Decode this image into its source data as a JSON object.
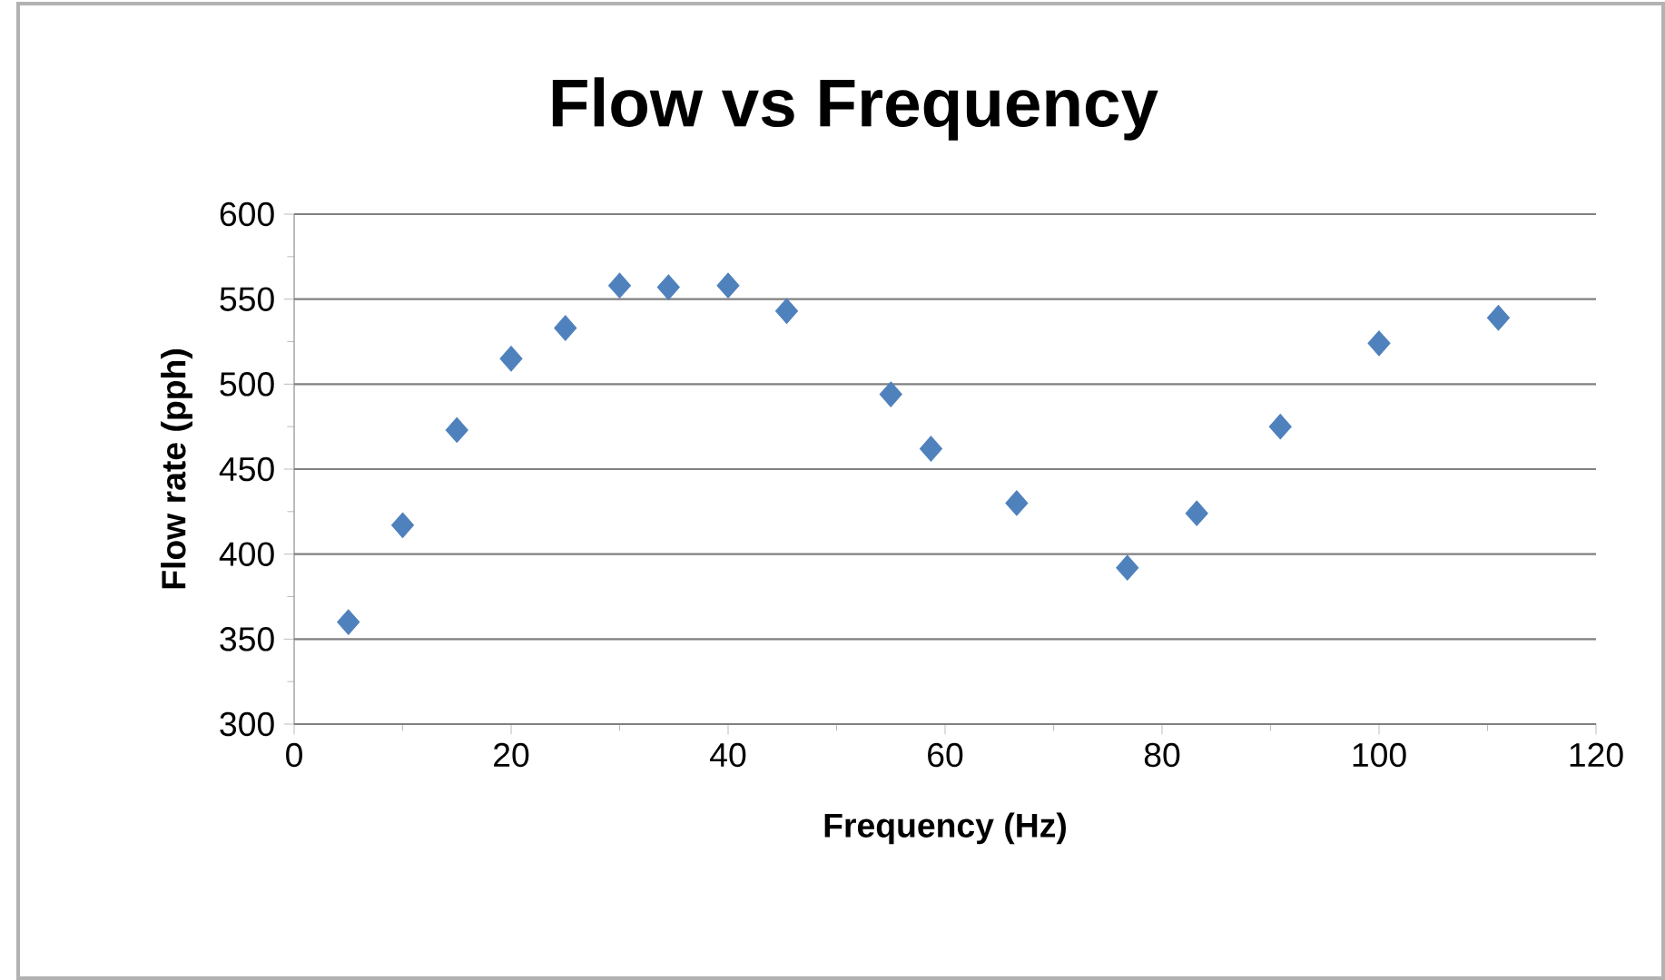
{
  "chart_data": {
    "type": "scatter",
    "title": "Flow vs Frequency",
    "xlabel": "Frequency (Hz)",
    "ylabel": "Flow rate (pph)",
    "x": [
      5,
      10,
      15,
      20,
      25,
      30,
      34.5,
      40,
      45.4,
      55,
      58.7,
      66.6,
      76.8,
      83.2,
      90.9,
      100,
      111
    ],
    "values": [
      360,
      417,
      473,
      515,
      533,
      558,
      557,
      558,
      543,
      494,
      462,
      430,
      392,
      424,
      475,
      524,
      539
    ],
    "color": "#4f81bd",
    "marker": "diamond",
    "grid": "y",
    "xlim": [
      0,
      120
    ],
    "xticks": [
      0,
      20,
      40,
      60,
      80,
      100,
      120
    ],
    "ylim": [
      300,
      600
    ],
    "yticks": [
      300,
      350,
      400,
      450,
      500,
      550,
      600
    ]
  }
}
